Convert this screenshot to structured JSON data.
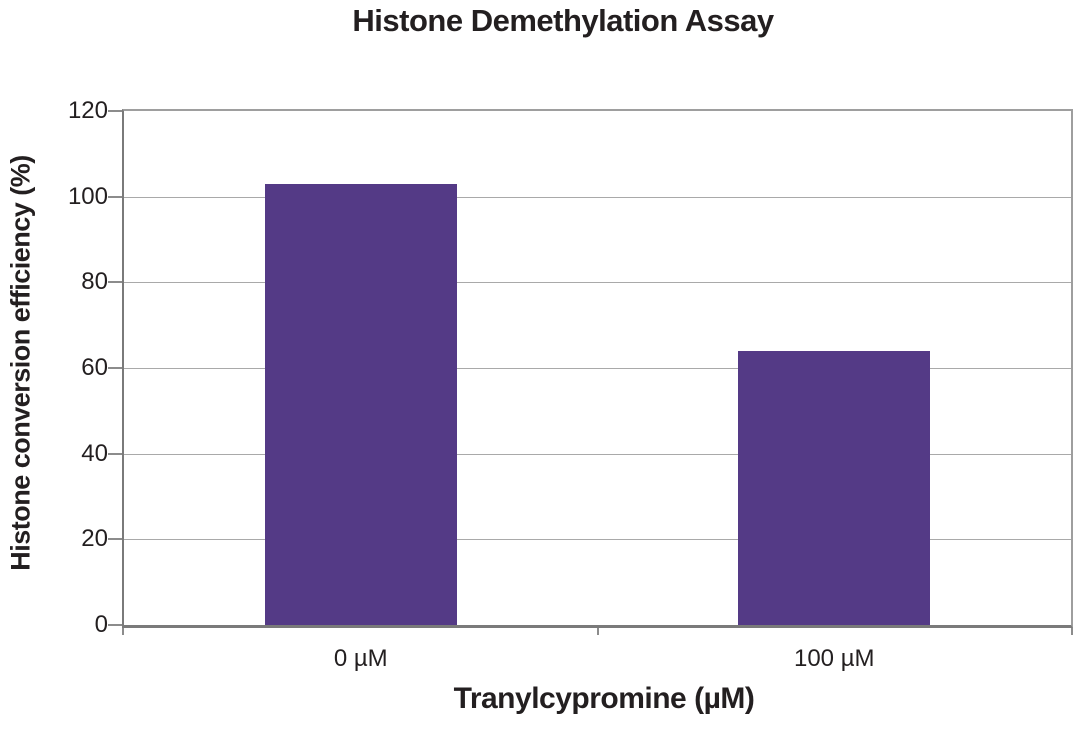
{
  "chart_data": {
    "type": "bar",
    "title": "Histone Demethylation Assay",
    "categories": [
      "0 µM",
      "100 µM"
    ],
    "values": [
      103,
      64
    ],
    "xlabel": "Tranylcypromine (µM)",
    "ylabel": "Histone conversion efficiency (%)",
    "ylim": [
      0,
      120
    ],
    "yticks": [
      0,
      20,
      40,
      60,
      80,
      100,
      120
    ],
    "grid": true,
    "legend_position": "none",
    "bar_color": "#543a86",
    "grid_color": "#a9a9a9",
    "axis_color": "#7a7a7a",
    "border_color": "#9e9e9e",
    "text_color": "#231f20"
  }
}
